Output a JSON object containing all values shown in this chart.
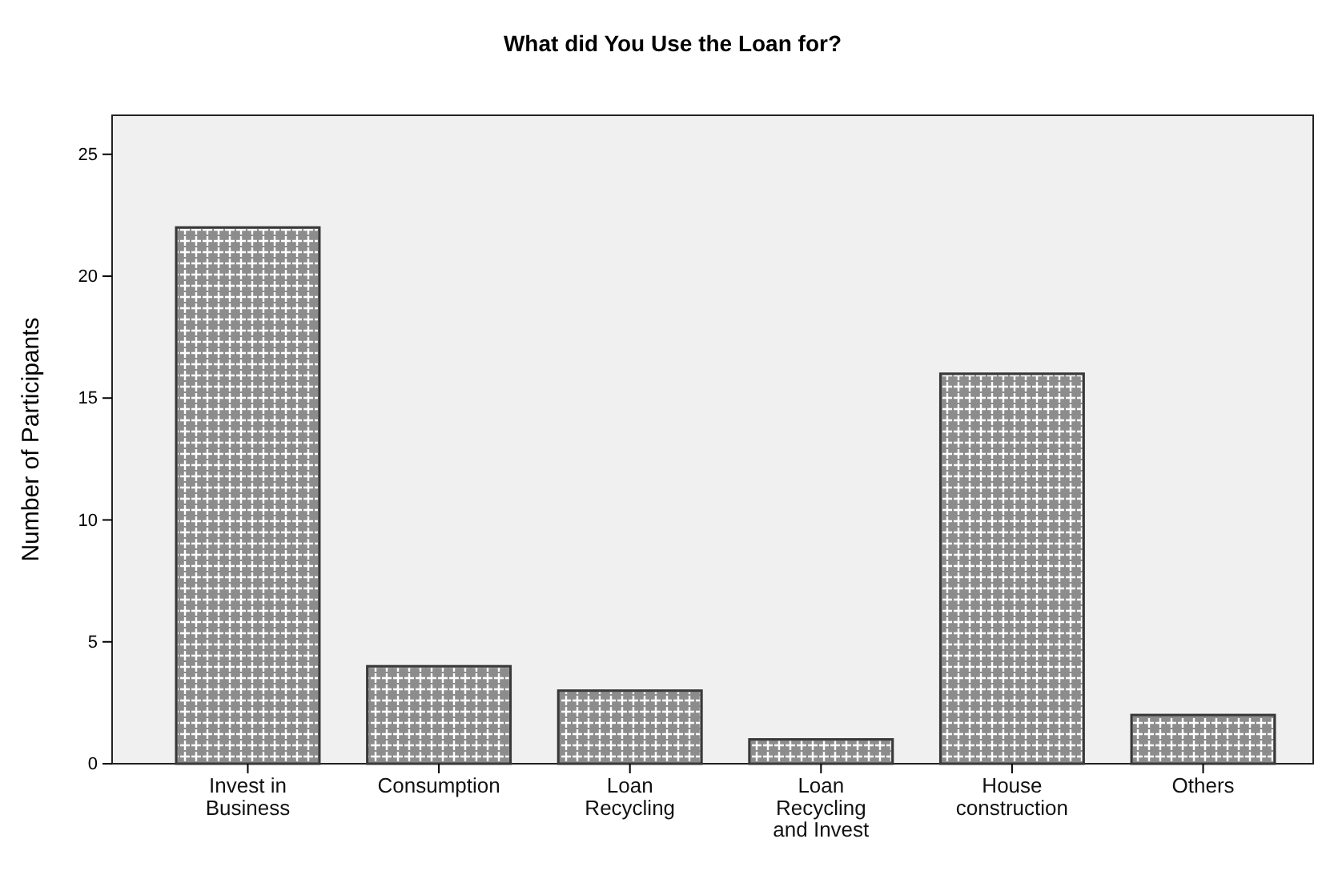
{
  "chart_data": {
    "type": "bar",
    "title": "What did You Use the Loan for?",
    "ylabel": "Number of Participants",
    "categories": [
      "Invest in Business",
      "Consumption",
      "Loan Recycling",
      "Loan Recycling and Invest",
      "House construction",
      "Others"
    ],
    "values": [
      22,
      4,
      3,
      1,
      16,
      2
    ],
    "color": "#8c8c8c",
    "ylim": [
      0,
      26.6
    ],
    "yticks": [
      0,
      5,
      10,
      15,
      20,
      25
    ],
    "grid": false
  }
}
